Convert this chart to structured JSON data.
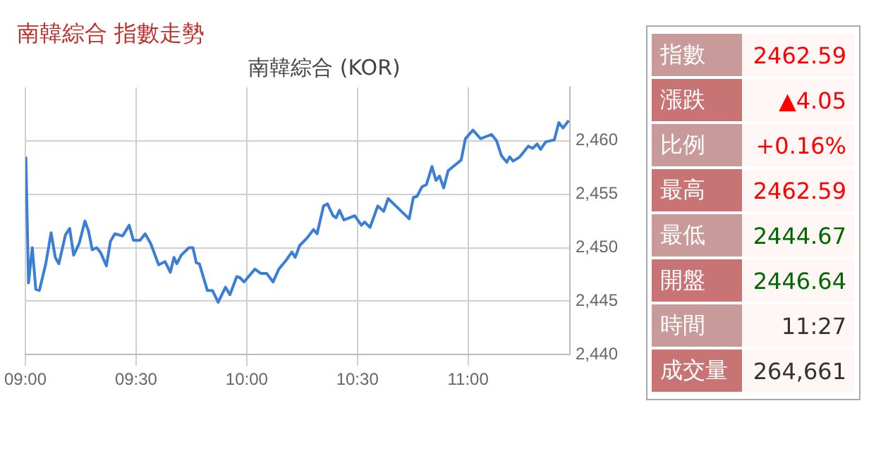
{
  "chart_data": [
    {
      "type": "line",
      "title": "南韓綜合 指數走勢",
      "subtitle": "南韓綜合 (KOR)",
      "x": [
        9.002,
        9.014,
        9.031,
        9.047,
        9.063,
        9.092,
        9.116,
        9.135,
        9.151,
        9.181,
        9.2,
        9.218,
        9.243,
        9.269,
        9.286,
        9.302,
        9.322,
        9.341,
        9.366,
        9.384,
        9.404,
        9.439,
        9.469,
        9.488,
        9.518,
        9.541,
        9.566,
        9.602,
        9.631,
        9.655,
        9.671,
        9.684,
        9.704,
        9.739,
        9.757,
        9.772,
        9.786,
        9.822,
        9.845,
        9.871,
        9.904,
        9.924,
        9.955,
        9.969,
        9.988,
        10.037,
        10.063,
        10.09,
        10.119,
        10.145,
        10.181,
        10.204,
        10.219,
        10.239,
        10.272,
        10.302,
        10.318,
        10.347,
        10.365,
        10.39,
        10.404,
        10.419,
        10.439,
        10.488,
        10.518,
        10.533,
        10.557,
        10.592,
        10.619,
        10.639,
        10.694,
        10.734,
        10.753,
        10.769,
        10.792,
        10.812,
        10.837,
        10.855,
        10.871,
        10.89,
        10.91,
        10.945,
        10.969,
        10.988,
        11.022,
        11.057,
        11.106,
        11.129,
        11.151,
        11.175,
        11.188,
        11.204,
        11.234,
        11.272,
        11.292,
        11.312,
        11.328,
        11.351,
        11.39,
        11.41,
        11.429,
        11.455
      ],
      "series": [
        {
          "color": "#3a7fd5",
          "values": [
            2458.5,
            2446.7,
            2450.0,
            2446.1,
            2446.0,
            2448.5,
            2451.4,
            2449.1,
            2448.5,
            2451.2,
            2451.8,
            2449.3,
            2450.4,
            2452.5,
            2451.5,
            2449.8,
            2450.0,
            2449.5,
            2448.3,
            2450.6,
            2451.3,
            2451.1,
            2452.1,
            2450.7,
            2450.7,
            2451.3,
            2450.4,
            2448.4,
            2448.7,
            2447.7,
            2449.1,
            2448.5,
            2449.3,
            2450.0,
            2450.0,
            2448.6,
            2448.5,
            2446.0,
            2446.0,
            2444.9,
            2446.3,
            2445.6,
            2447.3,
            2447.2,
            2446.8,
            2448.0,
            2447.6,
            2447.6,
            2446.8,
            2448.0,
            2448.9,
            2449.6,
            2449.1,
            2450.2,
            2450.9,
            2451.7,
            2451.3,
            2453.9,
            2454.1,
            2453.0,
            2452.8,
            2453.5,
            2452.6,
            2453.0,
            2452.1,
            2452.4,
            2451.9,
            2453.9,
            2453.4,
            2454.6,
            2453.5,
            2452.7,
            2454.7,
            2454.8,
            2455.7,
            2455.9,
            2457.6,
            2456.3,
            2456.7,
            2455.6,
            2457.2,
            2457.8,
            2458.2,
            2460.2,
            2461.0,
            2460.2,
            2460.6,
            2460.0,
            2458.6,
            2458.0,
            2458.5,
            2458.1,
            2458.5,
            2459.5,
            2459.3,
            2459.7,
            2459.2,
            2459.9,
            2460.1,
            2461.7,
            2461.2,
            2461.9
          ]
        }
      ],
      "xlim": [
        9,
        11.46
      ],
      "xticks": [
        {
          "value": 9,
          "label": "09:00"
        },
        {
          "value": 9.5,
          "label": "09:30"
        },
        {
          "value": 10,
          "label": "10:00"
        },
        {
          "value": 10.5,
          "label": "10:30"
        },
        {
          "value": 11,
          "label": "11:00"
        }
      ],
      "ylim": [
        2440,
        2465
      ],
      "yticks": [
        {
          "value": 2440,
          "label": "2,440"
        },
        {
          "value": 2445,
          "label": "2,445"
        },
        {
          "value": 2450,
          "label": "2,450"
        },
        {
          "value": 2455,
          "label": "2,455"
        },
        {
          "value": 2460,
          "label": "2,460"
        }
      ],
      "grid": true,
      "legend": false,
      "marker": "none",
      "line_style": "solid"
    },
    {
      "type": "other",
      "categories": [
        "指數",
        "漲跌",
        "比例",
        "最高",
        "最低",
        "開盤",
        "時間",
        "成交量"
      ],
      "value_labels": [
        "2462.59",
        "▲4.05",
        "+0.16%",
        "2462.59",
        "2444.67",
        "2446.64",
        "11:27",
        "264,661"
      ]
    }
  ]
}
